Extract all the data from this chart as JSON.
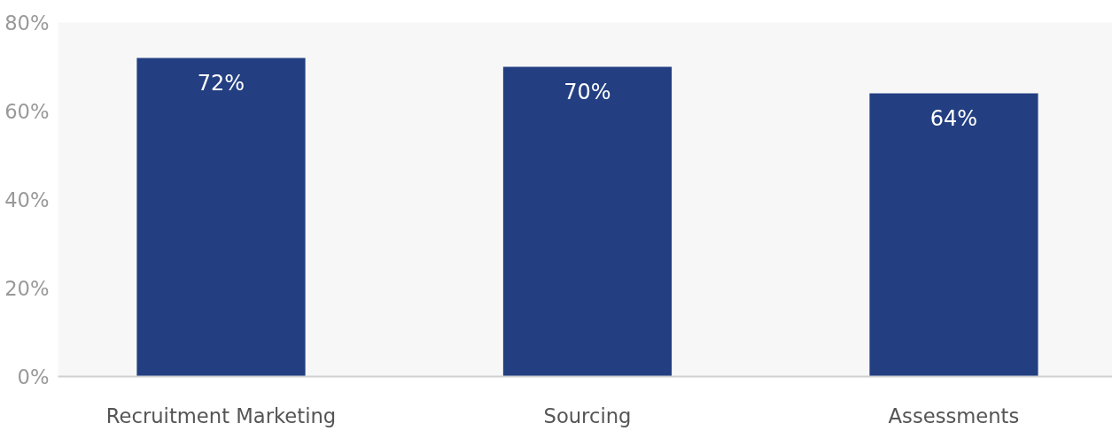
{
  "chart_data": {
    "type": "bar",
    "categories": [
      "Recruitment Marketing",
      "Sourcing",
      "Assessments"
    ],
    "values": [
      72,
      70,
      64
    ],
    "color": "#233f82",
    "ylim": [
      0,
      80
    ],
    "yticks": [
      {
        "value": 0,
        "label": "0%"
      },
      {
        "value": 20,
        "label": "20%"
      },
      {
        "value": 40,
        "label": "40%"
      },
      {
        "value": 60,
        "label": "60%"
      },
      {
        "value": 80,
        "label": "80%"
      }
    ],
    "value_labels": [
      "72%",
      "70%",
      "64%"
    ],
    "grid": false
  }
}
